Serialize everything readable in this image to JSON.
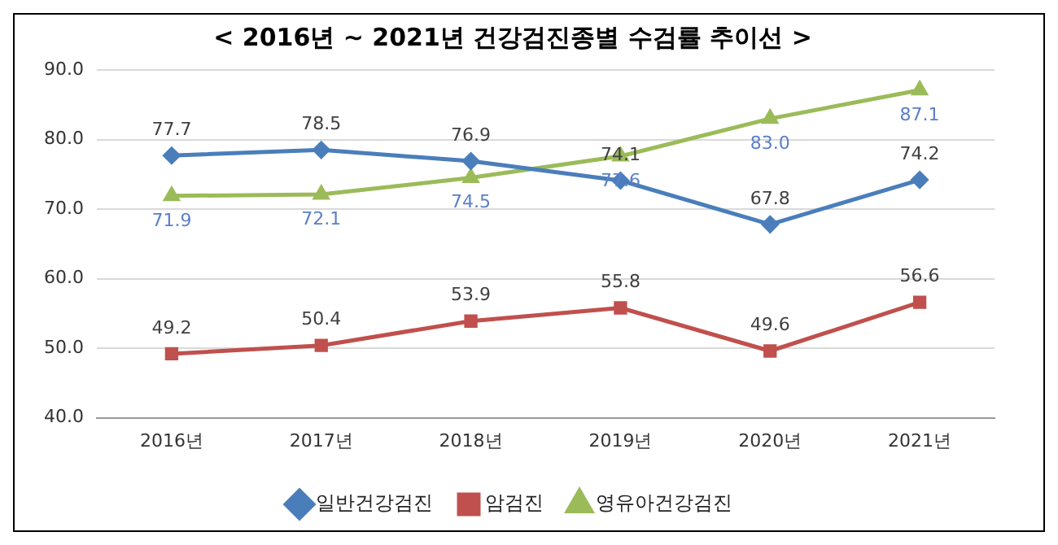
{
  "chart_data": {
    "type": "line",
    "title": "< 2016년 ~ 2021년 건강검진종별 수검률 추이선 >",
    "categories": [
      "2016년",
      "2017년",
      "2018년",
      "2019년",
      "2020년",
      "2021년"
    ],
    "series": [
      {
        "name": "일반건강검진",
        "color": "#4a7ebb",
        "marker": "diamond",
        "values": [
          77.7,
          78.5,
          76.9,
          74.1,
          67.8,
          74.2
        ],
        "value_labels": [
          "77.7",
          "78.5",
          "76.9",
          "74.1",
          "67.8",
          "74.2"
        ]
      },
      {
        "name": "암검진",
        "color": "#c0504d",
        "marker": "square",
        "values": [
          49.2,
          50.4,
          53.9,
          55.8,
          49.6,
          56.6
        ],
        "value_labels": [
          "49.2",
          "50.4",
          "53.9",
          "55.8",
          "49.6",
          "56.6"
        ]
      },
      {
        "name": "영유아건강검진",
        "color": "#9bbb59",
        "marker": "triangle",
        "values": [
          71.9,
          72.1,
          74.5,
          77.6,
          83.0,
          87.1
        ],
        "value_labels": [
          "71.9",
          "72.1",
          "74.5",
          "77.6",
          "83.0",
          "87.1"
        ]
      }
    ],
    "ylim": [
      40,
      90
    ],
    "yticks": [
      {
        "value": 40,
        "label": "40.0"
      },
      {
        "value": 50,
        "label": "50.0"
      },
      {
        "value": 60,
        "label": "60.0"
      },
      {
        "value": 70,
        "label": "70.0"
      },
      {
        "value": 80,
        "label": "80.0"
      },
      {
        "value": 90,
        "label": "90.0"
      }
    ],
    "grid": "y",
    "legend": "bottom",
    "line_style": "solid"
  }
}
